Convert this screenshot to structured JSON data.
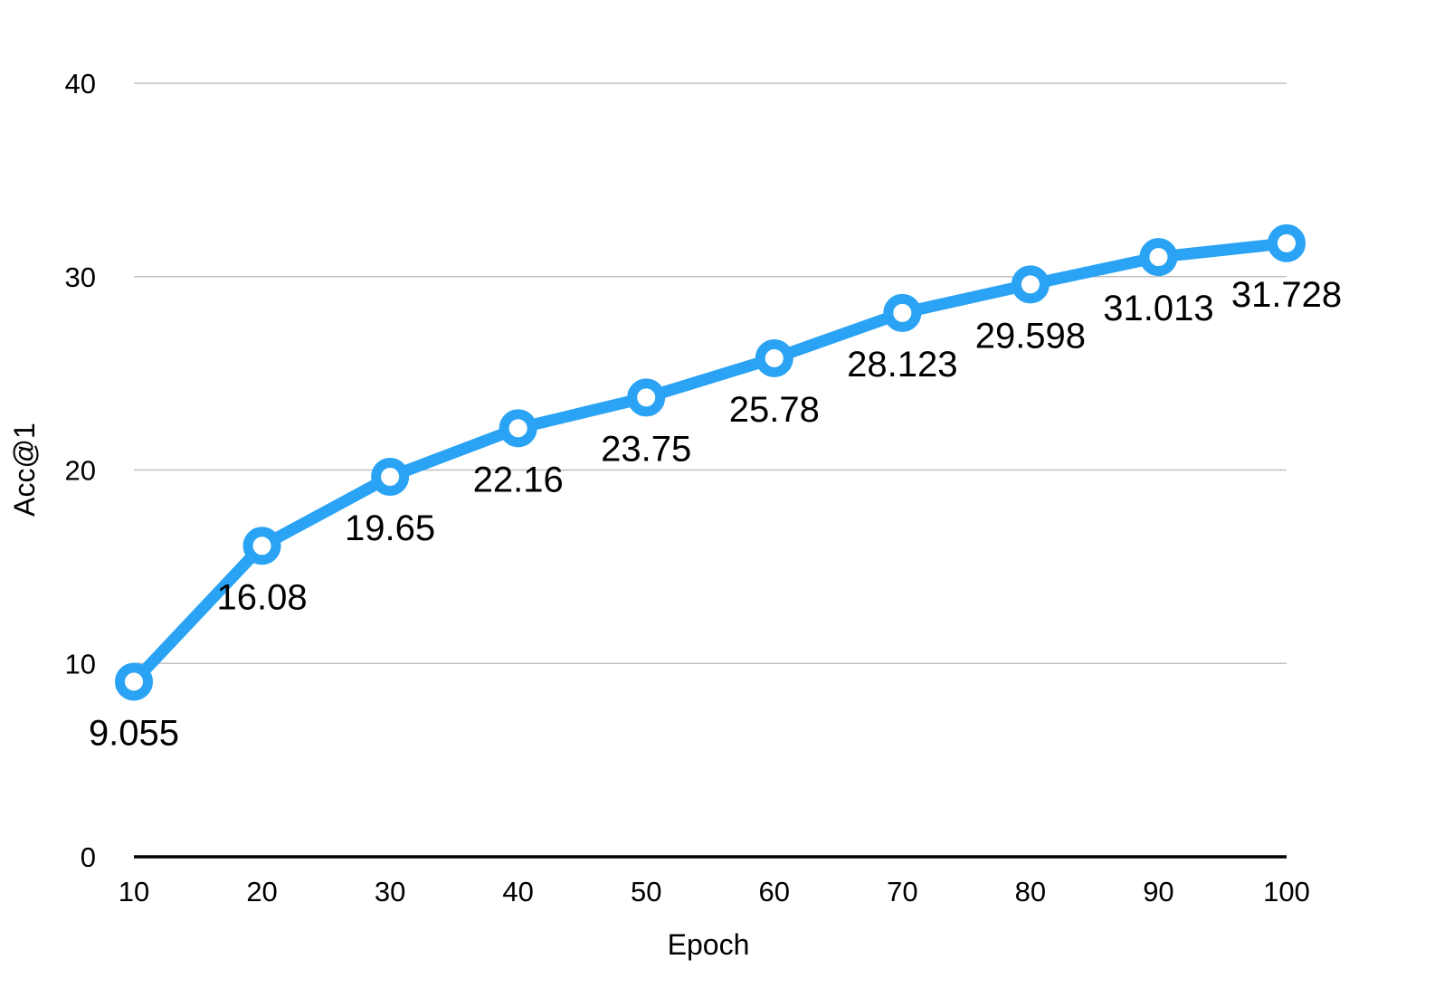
{
  "chart_data": {
    "type": "line",
    "title": "",
    "xlabel": "Epoch",
    "ylabel": "Acc@1",
    "x": [
      10,
      20,
      30,
      40,
      50,
      60,
      70,
      80,
      90,
      100
    ],
    "x_tick_labels": [
      "10",
      "20",
      "30",
      "40",
      "50",
      "60",
      "70",
      "80",
      "90",
      "100"
    ],
    "y_ticks": [
      0,
      10,
      20,
      30,
      40
    ],
    "y_tick_labels": [
      "0",
      "10",
      "20",
      "30",
      "40"
    ],
    "ylim": [
      0,
      40
    ],
    "grid": true,
    "legend": "none",
    "series": [
      {
        "values": [
          9.055,
          16.08,
          19.65,
          22.16,
          23.75,
          25.78,
          28.123,
          29.598,
          31.013,
          31.728
        ],
        "data_labels": [
          "9.055",
          "16.08",
          "19.65",
          "22.16",
          "23.75",
          "25.78",
          "28.123",
          "29.598",
          "31.013",
          "31.728"
        ],
        "color": "#2aa3f4"
      }
    ]
  }
}
